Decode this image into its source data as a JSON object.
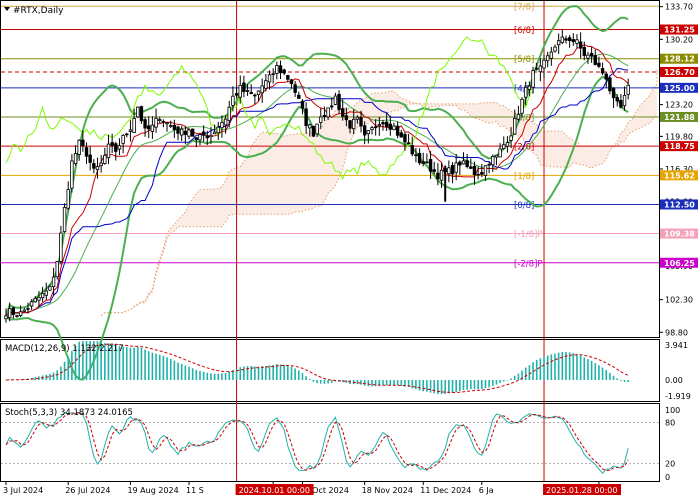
{
  "header": {
    "symbol_label": "#RTX,Daily"
  },
  "colors": {
    "candle": "#000000",
    "bollinger": "#4caf50",
    "bollinger_mid": "#4caf50",
    "chikou": "#7cfc00",
    "tenkan": "#cc0000",
    "kijun": "#0000cc",
    "cloud": "#e8a070",
    "cloud_fill": "#f4c9b8",
    "macd_hist": "#20b2aa",
    "macd_signal": "#cc0000",
    "stoch_main": "#20b2aa",
    "stoch_signal": "#cc0000",
    "vline": "#cc0000"
  },
  "chart_data": [
    {
      "type": "line",
      "name": "main",
      "price_axis": {
        "range": [
          98.4,
          134.2
        ],
        "ticks": [
          "133.70",
          "130.20",
          "126.70",
          "123.20",
          "119.80",
          "116.30",
          "112.80",
          "109.30",
          "105.90",
          "102.30",
          "98.80"
        ]
      },
      "murrey_levels": [
        {
          "label": "[7/8]",
          "value": 133.75,
          "color": "#d4a24a",
          "style": "solid",
          "tag": ""
        },
        {
          "label": "[6/8]",
          "value": 131.25,
          "color": "#cc0000",
          "style": "solid",
          "tag": "131.25"
        },
        {
          "label": "[5/8]",
          "value": 128.12,
          "color": "#8b8b00",
          "style": "solid",
          "tag": "128.12"
        },
        {
          "label": "",
          "value": 126.7,
          "color": "#cc0000",
          "style": "dashed",
          "tag": "126.70"
        },
        {
          "label": "[4/8]",
          "value": 125.0,
          "color": "#1a2dbb",
          "style": "solid",
          "tag": "125.00"
        },
        {
          "label": "",
          "value": 121.88,
          "color": "#6b8e23",
          "style": "solid",
          "tag": "121.88"
        },
        {
          "label": "[3/8]",
          "value": 121.88,
          "color": "#6b8e23",
          "style": "none",
          "tag": ""
        },
        {
          "label": "[2/8]",
          "value": 118.75,
          "color": "#cc0000",
          "style": "solid",
          "tag": "118.75"
        },
        {
          "label": "[1/8]",
          "value": 115.62,
          "color": "#e6a400",
          "style": "solid",
          "tag": "115.62"
        },
        {
          "label": "[0/8]",
          "value": 112.5,
          "color": "#1a2dbb",
          "style": "solid",
          "tag": "112.50"
        },
        {
          "label": "[-1/8]P",
          "value": 109.38,
          "color": "#f4a0b8",
          "style": "solid",
          "tag": "109.38"
        },
        {
          "label": "[-2/8]P",
          "value": 106.25,
          "color": "#cc00cc",
          "style": "solid",
          "tag": "106.25"
        }
      ],
      "vlines": [
        {
          "x_label": "2024.10.01 00:00",
          "index": 63
        },
        {
          "x_label": "2025.01.28 00:00",
          "index": 147
        }
      ],
      "x_ticks": [
        {
          "label": "3 Jul 2024",
          "index": 0
        },
        {
          "label": "26 Jul 2024",
          "index": 17
        },
        {
          "label": "19 Aug 2024",
          "index": 34
        },
        {
          "label": "11 S",
          "index": 50
        },
        {
          "label": "24",
          "index": 73
        },
        {
          "label": "25 Oct 2024",
          "index": 81
        },
        {
          "label": "18 Nov 2024",
          "index": 98
        },
        {
          "label": "11 Dec 2024",
          "index": 114
        },
        {
          "label": "6 Ja",
          "index": 130
        },
        {
          "label": "2025",
          "index": 162
        }
      ],
      "close_anchors": [
        [
          0,
          101.0
        ],
        [
          4,
          100.8
        ],
        [
          8,
          102.2
        ],
        [
          12,
          103.4
        ],
        [
          14,
          106.5
        ],
        [
          16,
          112.0
        ],
        [
          18,
          117.0
        ],
        [
          20,
          119.0
        ],
        [
          22,
          118.0
        ],
        [
          24,
          116.0
        ],
        [
          26,
          116.8
        ],
        [
          28,
          118.6
        ],
        [
          30,
          118.3
        ],
        [
          32,
          119.6
        ],
        [
          34,
          120.8
        ],
        [
          36,
          123.0
        ],
        [
          38,
          120.3
        ],
        [
          40,
          120.8
        ],
        [
          42,
          122.0
        ],
        [
          44,
          121.2
        ],
        [
          46,
          120.6
        ],
        [
          48,
          120.2
        ],
        [
          50,
          120.6
        ],
        [
          52,
          119.3
        ],
        [
          54,
          119.9
        ],
        [
          56,
          120.0
        ],
        [
          58,
          120.9
        ],
        [
          60,
          121.8
        ],
        [
          62,
          124.0
        ],
        [
          64,
          124.9
        ],
        [
          66,
          124.4
        ],
        [
          68,
          124.1
        ],
        [
          70,
          125.2
        ],
        [
          72,
          126.0
        ],
        [
          74,
          127.2
        ],
        [
          76,
          126.5
        ],
        [
          78,
          125.6
        ],
        [
          80,
          123.6
        ],
        [
          82,
          121.3
        ],
        [
          84,
          120.2
        ],
        [
          86,
          122.2
        ],
        [
          88,
          122.4
        ],
        [
          90,
          124.0
        ],
        [
          92,
          122.0
        ],
        [
          94,
          121.0
        ],
        [
          96,
          121.5
        ],
        [
          98,
          119.6
        ],
        [
          100,
          120.5
        ],
        [
          102,
          121.5
        ],
        [
          104,
          121.2
        ],
        [
          106,
          120.8
        ],
        [
          108,
          119.5
        ],
        [
          110,
          118.9
        ],
        [
          112,
          117.4
        ],
        [
          114,
          117.0
        ],
        [
          116,
          116.4
        ],
        [
          118,
          115.7
        ],
        [
          120,
          115.9
        ],
        [
          122,
          116.2
        ],
        [
          124,
          117.0
        ],
        [
          126,
          116.5
        ],
        [
          128,
          115.9
        ],
        [
          130,
          116.0
        ],
        [
          132,
          117.2
        ],
        [
          134,
          117.6
        ],
        [
          136,
          118.9
        ],
        [
          138,
          120.2
        ],
        [
          140,
          122.5
        ],
        [
          142,
          124.7
        ],
        [
          144,
          126.5
        ],
        [
          146,
          126.9
        ],
        [
          148,
          128.2
        ],
        [
          150,
          129.6
        ],
        [
          152,
          130.1
        ],
        [
          154,
          130.3
        ],
        [
          156,
          129.8
        ],
        [
          158,
          128.6
        ],
        [
          160,
          128.2
        ],
        [
          162,
          127.1
        ],
        [
          164,
          126.2
        ],
        [
          166,
          123.5
        ],
        [
          168,
          122.8
        ],
        [
          170,
          124.9
        ]
      ],
      "low_spikes": [
        [
          120,
          112.8
        ]
      ]
    },
    {
      "type": "bar",
      "name": "MACD",
      "label": "MACD(12,26,9) 1.132 2.217",
      "ticks": [
        "3.941",
        "0.00",
        "-1.919"
      ],
      "range": [
        -2.2,
        4.3
      ]
    },
    {
      "type": "line",
      "name": "Stoch",
      "label": "Stoch(5,3,3) 34.1873 24.0165",
      "ticks": [
        "100",
        "80",
        "20",
        "0"
      ],
      "range": [
        0,
        100
      ],
      "levels": [
        80,
        20
      ]
    }
  ]
}
